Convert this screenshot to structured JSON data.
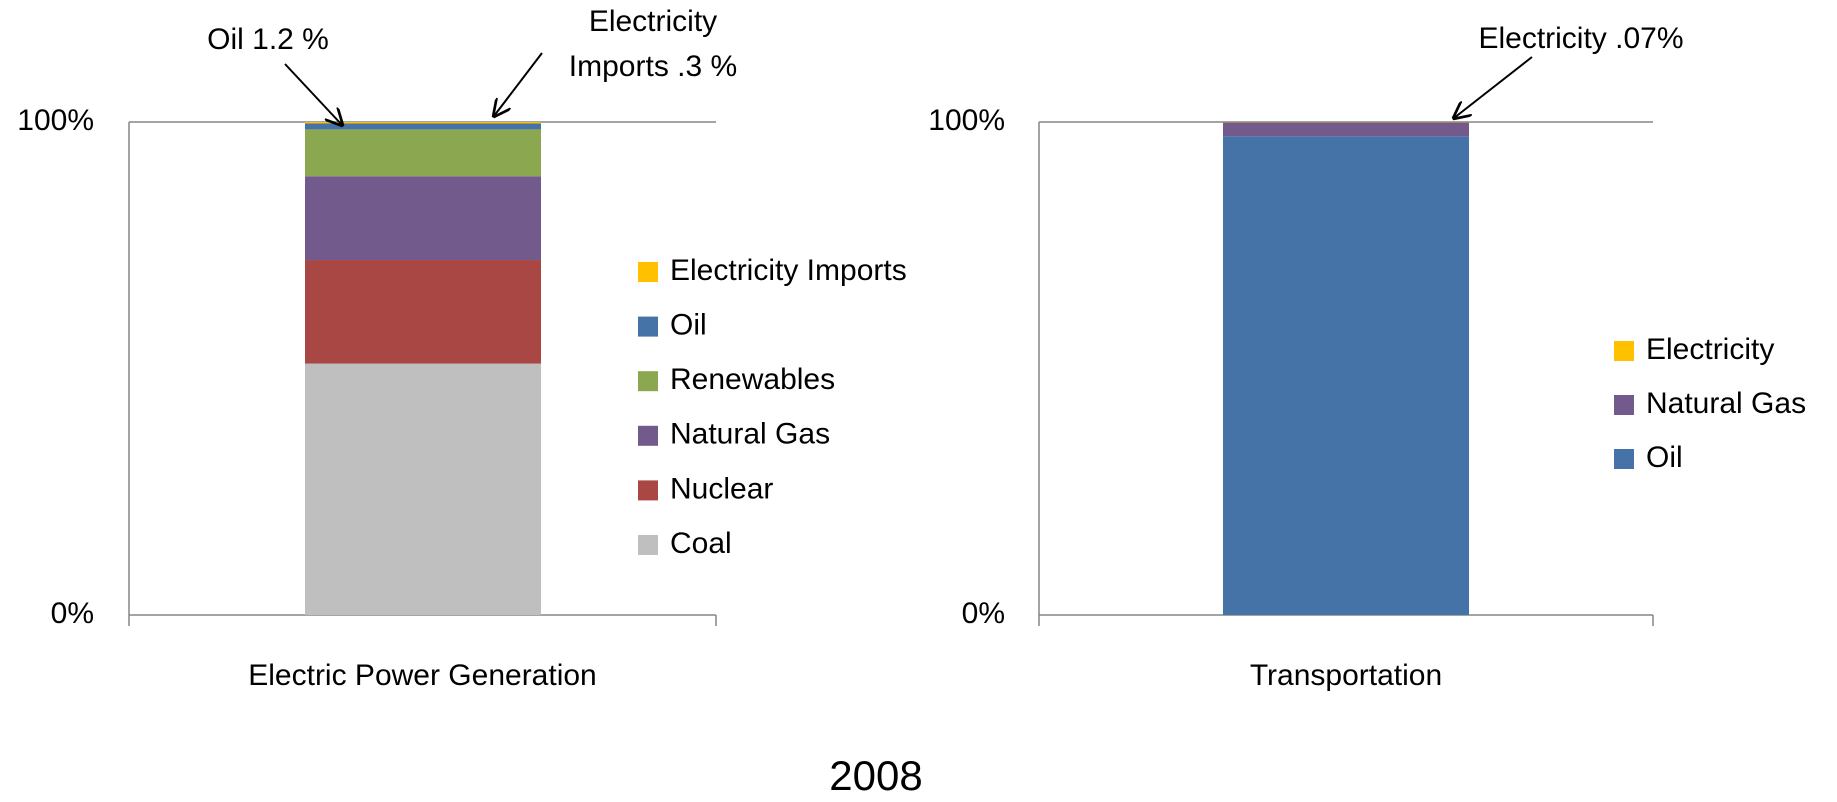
{
  "title": "2008",
  "chart_data": [
    {
      "type": "stacked_bar",
      "categories": [
        "Electric Power Generation"
      ],
      "ylim": [
        0,
        100
      ],
      "yticks": [
        {
          "value": 0,
          "label": "0%"
        },
        {
          "value": 100,
          "label": "100%"
        }
      ],
      "series": [
        {
          "name": "Coal",
          "color": "#bfbfbf",
          "values": [
            51
          ]
        },
        {
          "name": "Nuclear",
          "color": "#a94744",
          "values": [
            21
          ]
        },
        {
          "name": "Natural Gas",
          "color": "#725a8c",
          "values": [
            17
          ]
        },
        {
          "name": "Renewables",
          "color": "#8ba74f",
          "values": [
            9.5
          ]
        },
        {
          "name": "Oil",
          "color": "#4572a7",
          "values": [
            1.2
          ]
        },
        {
          "name": "Electricity Imports",
          "color": "#ffc000",
          "values": [
            0.3
          ]
        }
      ],
      "legend": "right",
      "annotations": [
        {
          "text": [
            "Oil 1.2 %"
          ]
        },
        {
          "text": [
            "Electricity",
            "Imports .3 %"
          ]
        }
      ]
    },
    {
      "type": "stacked_bar",
      "categories": [
        "Transportation"
      ],
      "ylim": [
        0,
        100
      ],
      "yticks": [
        {
          "value": 0,
          "label": "0%"
        },
        {
          "value": 100,
          "label": "100%"
        }
      ],
      "series": [
        {
          "name": "Oil",
          "color": "#4572a7",
          "values": [
            97.1
          ]
        },
        {
          "name": "Natural Gas",
          "color": "#725a8c",
          "values": [
            2.83
          ]
        },
        {
          "name": "Electricity",
          "color": "#ffc000",
          "values": [
            0.07
          ]
        }
      ],
      "legend": "right",
      "annotations": [
        {
          "text": [
            "Electricity .07%"
          ]
        }
      ]
    }
  ]
}
